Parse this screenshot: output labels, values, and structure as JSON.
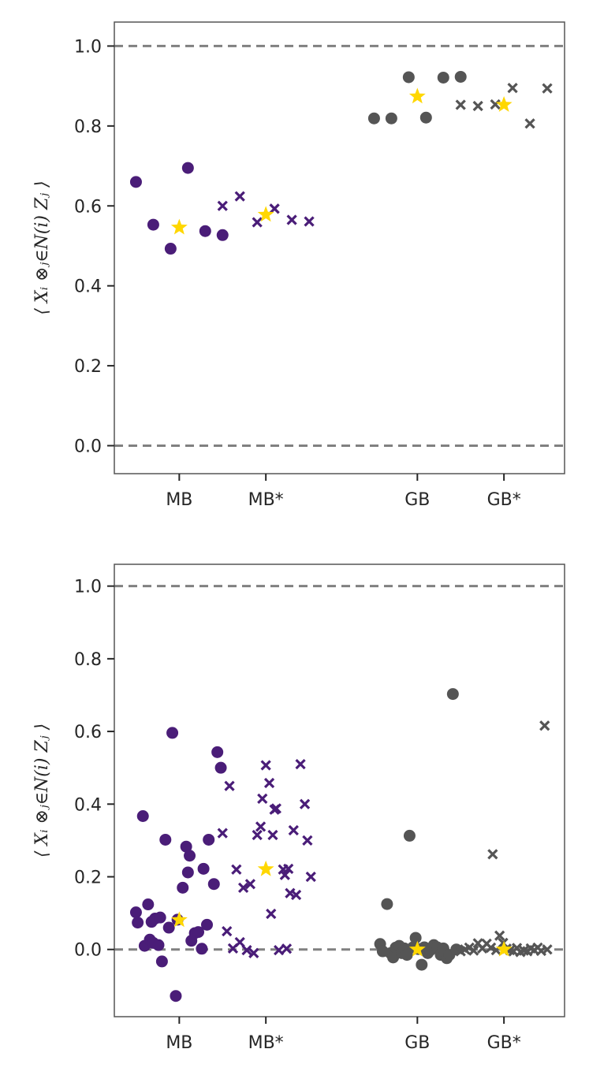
{
  "chart_data": [
    {
      "type": "scatter",
      "title": "",
      "xlabel": "",
      "ylabel": "⟨ Xᵢ ⊗ⱼ∈N(i) Zⱼ ⟩",
      "ylim": [
        -0.07,
        1.06
      ],
      "xlim": [
        -0.75,
        4.45
      ],
      "yticks": [
        "0.0",
        "0.2",
        "0.4",
        "0.6",
        "0.8",
        "1.0"
      ],
      "ytick_values": [
        0.0,
        0.2,
        0.4,
        0.6,
        0.8,
        1.0
      ],
      "categories": [
        "MB",
        "MB*",
        "GB",
        "GB*"
      ],
      "category_positions": [
        0,
        1,
        2.75,
        3.75
      ],
      "reference_lines": [
        0.0,
        1.0
      ],
      "grid": false,
      "colors": {
        "MB": "#4a1d78",
        "GB": "#555555",
        "mean": "#ffd700",
        "reference": "#808080"
      },
      "series": [
        {
          "category": "MB",
          "marker": "circle",
          "x": [
            -0.5,
            -0.3,
            -0.1,
            0.1,
            0.3,
            0.5
          ],
          "y": [
            0.66,
            0.553,
            0.493,
            0.695,
            0.537,
            0.527
          ]
        },
        {
          "category": "MB",
          "marker": "star",
          "x": [
            0
          ],
          "y": [
            0.546
          ]
        },
        {
          "category": "MB*",
          "marker": "cross",
          "x": [
            0.5,
            0.7,
            0.9,
            1.1,
            1.3,
            1.5
          ],
          "y": [
            0.6,
            0.624,
            0.559,
            0.593,
            0.565,
            0.561
          ]
        },
        {
          "category": "MB*",
          "marker": "star",
          "x": [
            1
          ],
          "y": [
            0.578
          ]
        },
        {
          "category": "GB",
          "marker": "circle",
          "x": [
            2.25,
            2.45,
            2.65,
            2.85,
            3.05,
            3.25
          ],
          "y": [
            0.819,
            0.819,
            0.922,
            0.821,
            0.921,
            0.923
          ]
        },
        {
          "category": "GB",
          "marker": "star",
          "x": [
            2.75
          ],
          "y": [
            0.874
          ]
        },
        {
          "category": "GB*",
          "marker": "cross",
          "x": [
            3.25,
            3.45,
            3.65,
            3.85,
            4.05,
            4.25
          ],
          "y": [
            0.853,
            0.85,
            0.854,
            0.895,
            0.806,
            0.894
          ]
        },
        {
          "category": "GB*",
          "marker": "star",
          "x": [
            3.75
          ],
          "y": [
            0.853
          ]
        }
      ]
    },
    {
      "type": "scatter",
      "title": "",
      "xlabel": "",
      "ylabel": "⟨ Xᵢ ⊗ⱼ∈N(i) Zⱼ ⟩",
      "ylim": [
        -0.185,
        1.06
      ],
      "xlim": [
        -0.75,
        4.45
      ],
      "yticks": [
        "0.0",
        "0.2",
        "0.4",
        "0.6",
        "0.8",
        "1.0"
      ],
      "ytick_values": [
        0.0,
        0.2,
        0.4,
        0.6,
        0.8,
        1.0
      ],
      "categories": [
        "MB",
        "MB*",
        "GB",
        "GB*"
      ],
      "category_positions": [
        0,
        1,
        2.75,
        3.75
      ],
      "reference_lines": [
        0.0,
        1.0
      ],
      "grid": false,
      "colors": {
        "MB": "#4a1d78",
        "GB": "#555555",
        "mean": "#ffd700",
        "reference": "#808080"
      },
      "series": [
        {
          "category": "MB",
          "marker": "circle",
          "x": [
            -0.5,
            -0.48,
            -0.42,
            -0.4,
            -0.36,
            -0.34,
            -0.32,
            -0.3,
            -0.28,
            -0.24,
            -0.22,
            -0.2,
            -0.16,
            -0.12,
            -0.08,
            -0.04,
            -0.02,
            0.04,
            0.08,
            0.1,
            0.12,
            0.14,
            0.18,
            0.22,
            0.26,
            0.28,
            0.32,
            0.34,
            0.4,
            0.44,
            0.48
          ],
          "y": [
            0.102,
            0.074,
            0.367,
            0.01,
            0.124,
            0.027,
            0.076,
            0.018,
            0.085,
            0.012,
            0.088,
            -0.033,
            0.302,
            0.06,
            0.596,
            -0.128,
            0.082,
            0.17,
            0.283,
            0.212,
            0.258,
            0.024,
            0.045,
            0.048,
            0.002,
            0.222,
            0.068,
            0.302,
            0.18,
            0.543,
            0.5
          ]
        },
        {
          "category": "MB",
          "marker": "star",
          "x": [
            0
          ],
          "y": [
            0.081
          ]
        },
        {
          "category": "MB*",
          "marker": "cross",
          "x": [
            0.5,
            0.55,
            0.58,
            0.62,
            0.66,
            0.7,
            0.74,
            0.78,
            0.82,
            0.86,
            0.9,
            0.94,
            0.96,
            1.0,
            1.04,
            1.06,
            1.08,
            1.1,
            1.12,
            1.15,
            1.2,
            1.22,
            1.24,
            1.26,
            1.28,
            1.32,
            1.35,
            1.4,
            1.45,
            1.48,
            1.52
          ],
          "y": [
            0.32,
            0.05,
            0.45,
            0.003,
            0.22,
            0.02,
            0.17,
            -0.002,
            0.18,
            -0.01,
            0.315,
            0.338,
            0.415,
            0.507,
            0.458,
            0.098,
            0.315,
            0.385,
            0.388,
            -0.002,
            0.22,
            0.205,
            0.002,
            0.222,
            0.155,
            0.328,
            0.15,
            0.51,
            0.4,
            0.3,
            0.2
          ]
        },
        {
          "category": "MB*",
          "marker": "star",
          "x": [
            1
          ],
          "y": [
            0.221
          ]
        },
        {
          "category": "GB",
          "marker": "circle",
          "x": [
            2.32,
            2.35,
            2.4,
            2.44,
            2.47,
            2.5,
            2.54,
            2.57,
            2.6,
            2.63,
            2.66,
            2.7,
            2.73,
            2.76,
            2.8,
            2.83,
            2.87,
            2.9,
            2.94,
            2.98,
            3.02,
            3.05,
            3.09,
            3.12,
            3.16,
            3.2
          ],
          "y": [
            0.015,
            -0.005,
            0.125,
            -0.01,
            -0.022,
            0.005,
            0.01,
            -0.01,
            0.003,
            -0.015,
            0.313,
            0.006,
            0.032,
            0.001,
            -0.042,
            0.006,
            -0.01,
            -0.002,
            0.012,
            0.006,
            -0.015,
            0.003,
            -0.024,
            -0.015,
            0.703,
            0.0
          ]
        },
        {
          "category": "GB",
          "marker": "star",
          "x": [
            2.75
          ],
          "y": [
            0.0
          ]
        },
        {
          "category": "GB*",
          "marker": "cross",
          "x": [
            3.25,
            3.3,
            3.35,
            3.4,
            3.45,
            3.5,
            3.55,
            3.6,
            3.62,
            3.66,
            3.7,
            3.74,
            3.78,
            3.82,
            3.86,
            3.9,
            3.94,
            3.98,
            4.02,
            4.06,
            4.1,
            4.14,
            4.18,
            4.22,
            4.25
          ],
          "y": [
            -0.005,
            0.0,
            0.005,
            -0.003,
            0.017,
            0.003,
            0.016,
            0.005,
            0.262,
            -0.002,
            0.038,
            0.018,
            0.002,
            -0.002,
            -0.005,
            0.004,
            -0.007,
            -0.003,
            -0.005,
            0.003,
            -0.002,
            0.005,
            -0.004,
            0.616,
            0.0
          ]
        },
        {
          "category": "GB*",
          "marker": "star",
          "x": [
            3.75
          ],
          "y": [
            0.0
          ]
        }
      ]
    }
  ]
}
